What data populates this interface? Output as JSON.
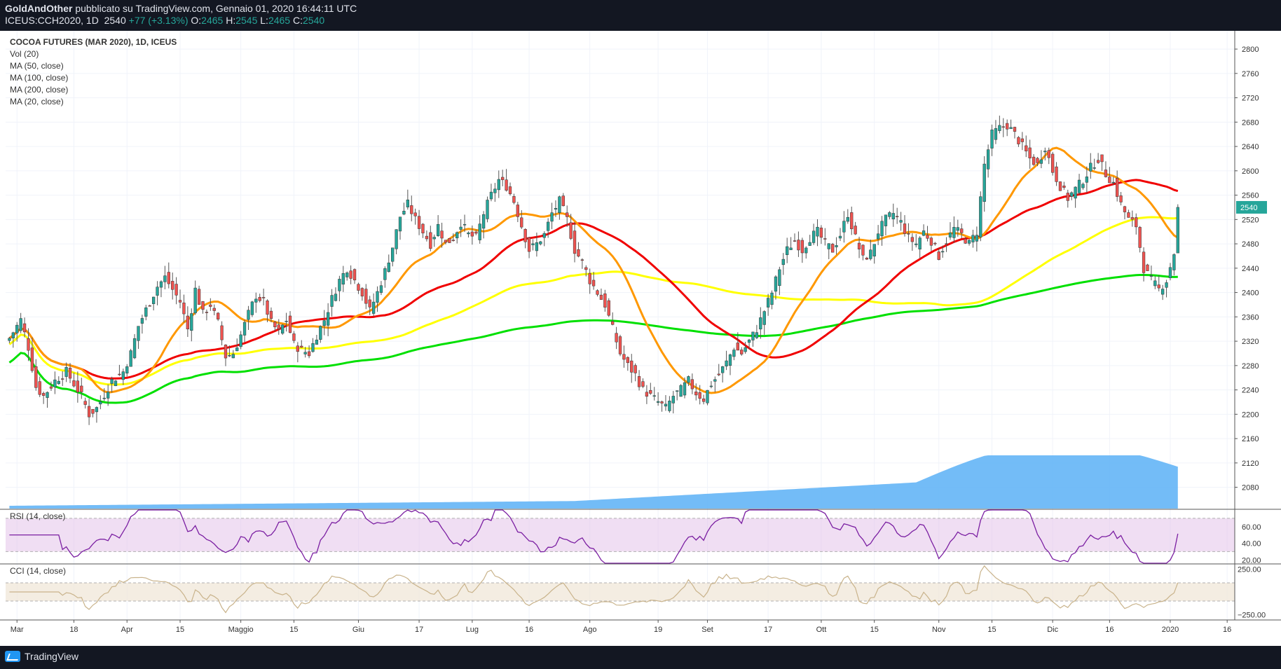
{
  "header": {
    "author": "GoldAndOther",
    "published_text": "pubblicato su TradingView.com, Gennaio 01, 2020 16:44:11 UTC",
    "symbol": "ICEUS:CCH2020, 1D",
    "last": "2540",
    "change": "+77 (+3.13%)",
    "o_label": "O:",
    "o_value": "2465",
    "h_label": "H:",
    "h_value": "2545",
    "l_label": "L:",
    "l_value": "2465",
    "c_label": "C:",
    "c_value": "2540"
  },
  "legend": {
    "title": "COCOA FUTURES (MAR 2020), 1D, ICEUS",
    "items": [
      "Vol (20)",
      "MA (50, close)",
      "MA (100, close)",
      "MA (200, close)",
      "MA (20, close)"
    ]
  },
  "footer": {
    "brand": "TradingView",
    "brand_icon": "tradingview-logo-icon"
  },
  "colors": {
    "up": "#26a69a",
    "down": "#ef5350",
    "ma20": "#ff9800",
    "ma50": "#f00000",
    "ma100": "#ffff00",
    "ma200": "#00e000",
    "volume": "#64b5f6",
    "rsi": "#7b1fa2",
    "rsi_band": "#e1bee7",
    "cci": "#c9b38b",
    "cci_band": "#efe6d6",
    "price_tag": "#26a69a"
  },
  "chart_data": [
    {
      "type": "candlestick",
      "title": "COCOA FUTURES (MAR 2020), 1D, ICEUS",
      "yaxis": {
        "ticks": [
          2080,
          2120,
          2160,
          2200,
          2240,
          2280,
          2320,
          2360,
          2400,
          2440,
          2480,
          2520,
          2560,
          2600,
          2640,
          2680,
          2720,
          2760,
          2800
        ],
        "range": [
          2045,
          2830
        ]
      },
      "xaxis": {
        "labels": [
          {
            "text": "Mar",
            "day": 3
          },
          {
            "text": "18",
            "day": 18
          },
          {
            "text": "Apr",
            "day": 32
          },
          {
            "text": "15",
            "day": 46
          },
          {
            "text": "Maggio",
            "day": 62
          },
          {
            "text": "15",
            "day": 76
          },
          {
            "text": "Giu",
            "day": 93
          },
          {
            "text": "17",
            "day": 109
          },
          {
            "text": "Lug",
            "day": 123
          },
          {
            "text": "16",
            "day": 138
          },
          {
            "text": "Ago",
            "day": 154
          },
          {
            "text": "19",
            "day": 172
          },
          {
            "text": "Set",
            "day": 185
          },
          {
            "text": "17",
            "day": 201
          },
          {
            "text": "Ott",
            "day": 215
          },
          {
            "text": "15",
            "day": 229
          },
          {
            "text": "Nov",
            "day": 246
          },
          {
            "text": "15",
            "day": 260
          },
          {
            "text": "Dic",
            "day": 276
          },
          {
            "text": "16",
            "day": 291
          },
          {
            "text": "2020",
            "day": 307
          },
          {
            "text": "16",
            "day": 322
          }
        ],
        "range_days": [
          0,
          324
        ]
      },
      "last_price": "2540",
      "ohlc_anchor_closes": [
        [
          1,
          2325
        ],
        [
          4,
          2355
        ],
        [
          6,
          2310
        ],
        [
          8,
          2245
        ],
        [
          10,
          2230
        ],
        [
          13,
          2255
        ],
        [
          16,
          2270
        ],
        [
          18,
          2250
        ],
        [
          20,
          2230
        ],
        [
          22,
          2200
        ],
        [
          24,
          2210
        ],
        [
          28,
          2255
        ],
        [
          31,
          2270
        ],
        [
          33,
          2300
        ],
        [
          35,
          2345
        ],
        [
          38,
          2385
        ],
        [
          40,
          2410
        ],
        [
          42,
          2425
        ],
        [
          44,
          2405
        ],
        [
          46,
          2385
        ],
        [
          48,
          2340
        ],
        [
          50,
          2405
        ],
        [
          52,
          2365
        ],
        [
          54,
          2380
        ],
        [
          56,
          2350
        ],
        [
          58,
          2295
        ],
        [
          60,
          2300
        ],
        [
          62,
          2330
        ],
        [
          64,
          2365
        ],
        [
          66,
          2395
        ],
        [
          68,
          2385
        ],
        [
          70,
          2350
        ],
        [
          72,
          2335
        ],
        [
          74,
          2355
        ],
        [
          76,
          2315
        ],
        [
          78,
          2305
        ],
        [
          80,
          2300
        ],
        [
          82,
          2330
        ],
        [
          84,
          2355
        ],
        [
          86,
          2390
        ],
        [
          88,
          2420
        ],
        [
          90,
          2440
        ],
        [
          92,
          2420
        ],
        [
          94,
          2400
        ],
        [
          96,
          2370
        ],
        [
          98,
          2400
        ],
        [
          100,
          2435
        ],
        [
          102,
          2475
        ],
        [
          104,
          2525
        ],
        [
          106,
          2545
        ],
        [
          108,
          2520
        ],
        [
          110,
          2500
        ],
        [
          112,
          2480
        ],
        [
          114,
          2510
        ],
        [
          116,
          2480
        ],
        [
          118,
          2490
        ],
        [
          120,
          2515
        ],
        [
          122,
          2495
        ],
        [
          124,
          2490
        ],
        [
          126,
          2530
        ],
        [
          128,
          2560
        ],
        [
          130,
          2585
        ],
        [
          132,
          2575
        ],
        [
          134,
          2550
        ],
        [
          136,
          2510
        ],
        [
          138,
          2470
        ],
        [
          140,
          2480
        ],
        [
          142,
          2495
        ],
        [
          144,
          2530
        ],
        [
          146,
          2550
        ],
        [
          148,
          2520
        ],
        [
          150,
          2470
        ],
        [
          152,
          2450
        ],
        [
          154,
          2420
        ],
        [
          156,
          2400
        ],
        [
          158,
          2380
        ],
        [
          160,
          2340
        ],
        [
          162,
          2300
        ],
        [
          164,
          2280
        ],
        [
          166,
          2265
        ],
        [
          168,
          2240
        ],
        [
          170,
          2230
        ],
        [
          172,
          2220
        ],
        [
          174,
          2210
        ],
        [
          176,
          2230
        ],
        [
          178,
          2240
        ],
        [
          180,
          2255
        ],
        [
          182,
          2235
        ],
        [
          184,
          2225
        ],
        [
          186,
          2250
        ],
        [
          188,
          2265
        ],
        [
          190,
          2285
        ],
        [
          192,
          2310
        ],
        [
          194,
          2300
        ],
        [
          196,
          2320
        ],
        [
          198,
          2340
        ],
        [
          200,
          2370
        ],
        [
          202,
          2400
        ],
        [
          204,
          2440
        ],
        [
          206,
          2470
        ],
        [
          208,
          2485
        ],
        [
          210,
          2470
        ],
        [
          212,
          2490
        ],
        [
          214,
          2500
        ],
        [
          216,
          2480
        ],
        [
          218,
          2470
        ],
        [
          220,
          2495
        ],
        [
          222,
          2530
        ],
        [
          224,
          2490
        ],
        [
          226,
          2455
        ],
        [
          228,
          2465
        ],
        [
          230,
          2500
        ],
        [
          232,
          2520
        ],
        [
          234,
          2530
        ],
        [
          236,
          2515
        ],
        [
          238,
          2490
        ],
        [
          240,
          2480
        ],
        [
          242,
          2500
        ],
        [
          244,
          2485
        ],
        [
          246,
          2460
        ],
        [
          248,
          2485
        ],
        [
          250,
          2505
        ],
        [
          252,
          2495
        ],
        [
          254,
          2480
        ],
        [
          256,
          2500
        ],
        [
          258,
          2610
        ],
        [
          260,
          2660
        ],
        [
          262,
          2670
        ],
        [
          264,
          2675
        ],
        [
          266,
          2660
        ],
        [
          268,
          2640
        ],
        [
          270,
          2620
        ],
        [
          272,
          2610
        ],
        [
          274,
          2640
        ],
        [
          276,
          2600
        ],
        [
          278,
          2575
        ],
        [
          280,
          2555
        ],
        [
          282,
          2570
        ],
        [
          284,
          2585
        ],
        [
          286,
          2605
        ],
        [
          288,
          2620
        ],
        [
          290,
          2595
        ],
        [
          292,
          2580
        ],
        [
          294,
          2545
        ],
        [
          296,
          2520
        ],
        [
          298,
          2510
        ],
        [
          300,
          2440
        ],
        [
          302,
          2420
        ],
        [
          304,
          2405
        ],
        [
          306,
          2420
        ],
        [
          308,
          2465
        ],
        [
          309,
          2540
        ]
      ]
    },
    {
      "type": "area",
      "title": "Vol (20)"
    },
    {
      "type": "line",
      "title": "RSI (14, close)",
      "yaxis": {
        "ticks": [
          20.0,
          40.0,
          60.0
        ],
        "range": [
          16,
          80
        ]
      },
      "bands": [
        30,
        70
      ]
    },
    {
      "type": "line",
      "title": "CCI (14, close)",
      "yaxis": {
        "ticks": [
          -250.0,
          250.0
        ],
        "range": [
          -300,
          300
        ]
      },
      "bands": [
        -100,
        100
      ]
    }
  ]
}
